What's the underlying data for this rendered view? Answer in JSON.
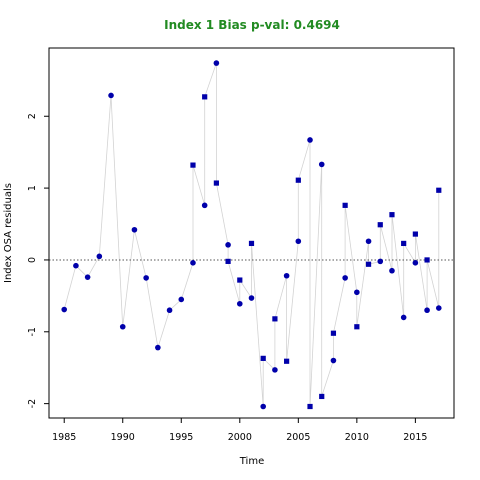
{
  "chart_data": {
    "type": "scatter",
    "title": "Index 1 Bias p-val: 0.4694",
    "title_color": "#228b22",
    "xlabel": "Time",
    "ylabel": "Index OSA residuals",
    "xlim": [
      1983.7,
      2018.3
    ],
    "ylim": [
      -2.2,
      2.95
    ],
    "xticks": [
      1985,
      1990,
      1995,
      2000,
      2005,
      2010,
      2015
    ],
    "yticks": [
      -2,
      -1,
      0,
      1,
      2
    ],
    "reference_line": 0,
    "grid": false,
    "legend": "none",
    "colors": {
      "points": "#0000aa",
      "lines": "#d3d3d3",
      "reference": "#555555"
    },
    "series": [
      {
        "marker": "circle",
        "points": [
          [
            1985,
            -0.69
          ],
          [
            1986,
            -0.08
          ],
          [
            1987,
            -0.24
          ],
          [
            1988,
            0.05
          ],
          [
            1989,
            2.29
          ],
          [
            1990,
            -0.93
          ],
          [
            1991,
            0.42
          ],
          [
            1992,
            -0.25
          ],
          [
            1993,
            -1.22
          ],
          [
            1994,
            -0.7
          ],
          [
            1995,
            -0.55
          ],
          [
            1996,
            -0.04
          ],
          [
            1997,
            0.76
          ],
          [
            1998,
            2.74
          ],
          [
            1999,
            0.21
          ],
          [
            2000,
            -0.61
          ],
          [
            2001,
            -0.53
          ],
          [
            2002,
            -2.04
          ],
          [
            2003,
            -1.53
          ],
          [
            2004,
            -0.22
          ],
          [
            2005,
            0.26
          ],
          [
            2006,
            1.67
          ],
          [
            2007,
            1.33
          ],
          [
            2008,
            -1.4
          ],
          [
            2009,
            -0.25
          ],
          [
            2010,
            -0.45
          ],
          [
            2011,
            0.26
          ],
          [
            2012,
            -0.02
          ],
          [
            2013,
            -0.15
          ],
          [
            2014,
            -0.8
          ],
          [
            2015,
            -0.04
          ],
          [
            2016,
            -0.7
          ],
          [
            2017,
            -0.67
          ]
        ]
      },
      {
        "marker": "square",
        "points": [
          [
            1996,
            1.32
          ],
          [
            1997,
            2.27
          ],
          [
            1998,
            1.07
          ],
          [
            1999,
            -0.02
          ],
          [
            2000,
            -0.28
          ],
          [
            2001,
            0.23
          ],
          [
            2002,
            -1.37
          ],
          [
            2003,
            -0.82
          ],
          [
            2004,
            -1.41
          ],
          [
            2005,
            1.11
          ],
          [
            2006,
            -2.04
          ],
          [
            2007,
            -1.9
          ],
          [
            2008,
            -1.02
          ],
          [
            2009,
            0.76
          ],
          [
            2010,
            -0.93
          ],
          [
            2011,
            -0.06
          ],
          [
            2012,
            0.49
          ],
          [
            2013,
            0.63
          ],
          [
            2014,
            0.23
          ],
          [
            2015,
            0.36
          ],
          [
            2016,
            0.0
          ],
          [
            2017,
            0.97
          ]
        ]
      }
    ]
  }
}
